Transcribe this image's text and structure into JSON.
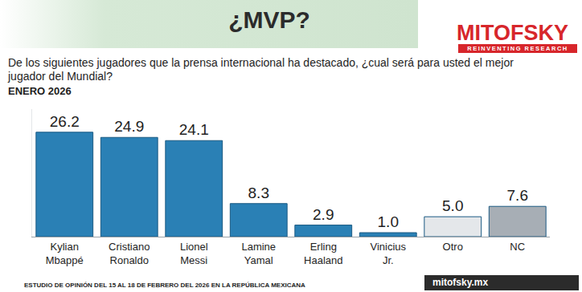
{
  "chart_data": {
    "type": "bar",
    "title": "¿MVP?",
    "subtitle": "De los siguientes jugadores que la prensa internacional ha destacado, ¿cual será para usted el mejor jugador del Mundial?",
    "period": "ENERO 2026",
    "logo": "MITOFSKY",
    "logo_tagline": "REINVENTING RESEARCH",
    "footer": "ESTUDIO DE OPINIÓN DEL 15 AL 18  DE FEBRERO DEL 2026 EN LA REPÚBLICA MEXICANA",
    "website": "mitofsky.mx",
    "categories": [
      "Kylian Mbappé",
      "Cristiano Ronaldo",
      "Lionel Messi",
      "Lamine Yamal",
      "Erling Haaland",
      "Vinicius Jr.",
      "Otro",
      "NC"
    ],
    "values": [
      26.2,
      24.9,
      24.1,
      8.3,
      2.9,
      1.0,
      5.0,
      7.6
    ],
    "value_labels": [
      "26.2",
      "24.9",
      "24.1",
      "8.3",
      "2.9",
      "1.0",
      "5.0",
      "7.6"
    ],
    "colors": [
      "#2a80b5",
      "#2a80b5",
      "#2a80b5",
      "#2a80b5",
      "#2a80b5",
      "#2a80b5",
      "#e4e7ea",
      "#a7aeb5"
    ],
    "ylim": [
      0,
      32
    ],
    "yticks": [],
    "grid": false,
    "data_labels": true,
    "tick_labels": "x"
  }
}
